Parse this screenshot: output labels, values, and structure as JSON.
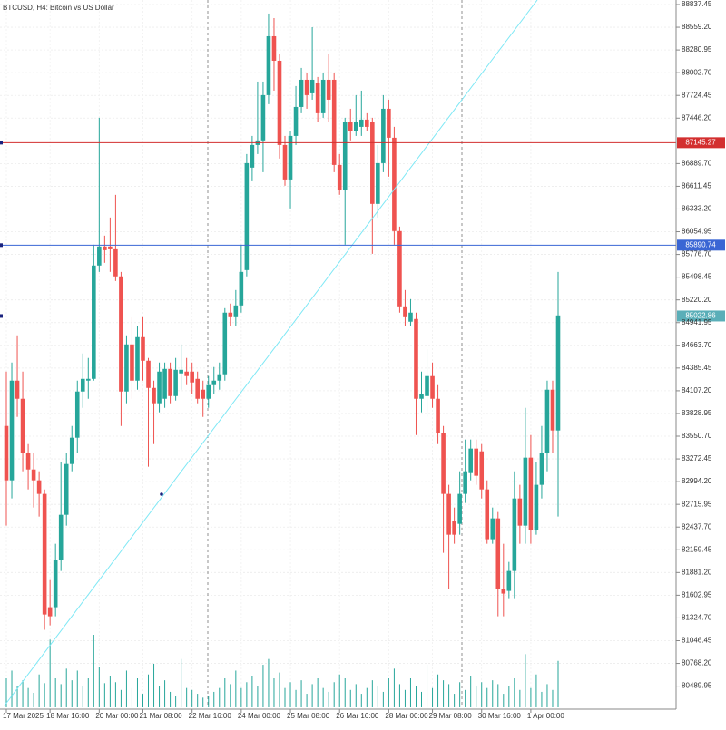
{
  "chart_data": {
    "type": "candlestick",
    "title": "BTCUSD, H4:  Bitcoin vs US Dollar",
    "up_color": "#26a69a",
    "down_color": "#ef5350",
    "volume_color": "#26a69a",
    "grid": true,
    "ylim": [
      80230,
      88893
    ],
    "yticks": [
      80489.95,
      {
        "value": 80768.2,
        "label": "80768.20"
      },
      81046.45,
      {
        "value": 81324.7,
        "label": "81324.70"
      },
      81602.95,
      {
        "value": 81881.2,
        "label": "81881.20"
      },
      82159.45,
      {
        "value": 82437.7,
        "label": "82437.70"
      },
      82715.95,
      {
        "value": 82994.2,
        "label": "82994.20"
      },
      83272.45,
      {
        "value": 83550.7,
        "label": "83550.70"
      },
      83828.95,
      {
        "value": 84107.2,
        "label": "84107.20"
      },
      84385.45,
      {
        "value": 84663.7,
        "label": "84663.70"
      },
      84941.95,
      {
        "value": 85220.2,
        "label": "85220.20"
      },
      85498.45,
      {
        "value": 85776.7,
        "label": "85776.70"
      },
      86054.95,
      {
        "value": 86333.2,
        "label": "86333.20"
      },
      86611.45,
      {
        "value": 86889.7,
        "label": "86889.70"
      },
      {
        "value": 87446.2,
        "label": "87446.20"
      },
      87724.45,
      {
        "value": 88002.7,
        "label": "88002.70"
      },
      88280.95,
      {
        "value": 88559.2,
        "label": "88559.20"
      },
      88837.45
    ],
    "levels": [
      {
        "value": 87145.27,
        "color": "#d32f2f"
      },
      {
        "value": 85890.74,
        "color": "#3a66d4"
      },
      {
        "value": 85022.86,
        "color": "#5aaeb8"
      }
    ],
    "categories": [
      "17 Mar 2025",
      null,
      null,
      null,
      null,
      null,
      null,
      null,
      "18 Mar 16:00",
      null,
      null,
      null,
      null,
      null,
      null,
      null,
      null,
      "20 Mar 00:00",
      null,
      null,
      null,
      null,
      null,
      null,
      null,
      "21 Mar 08:00",
      null,
      null,
      null,
      null,
      null,
      null,
      null,
      null,
      "22 Mar 16:00",
      null,
      null,
      null,
      null,
      null,
      null,
      null,
      null,
      "24 Mar 00:00",
      null,
      null,
      null,
      null,
      null,
      null,
      null,
      null,
      "25 Mar 08:00",
      null,
      null,
      null,
      null,
      null,
      null,
      null,
      null,
      "26 Mar 16:00",
      null,
      null,
      null,
      null,
      null,
      null,
      null,
      null,
      "28 Mar 00:00",
      null,
      null,
      null,
      null,
      null,
      null,
      null,
      "29 Mar 08:00",
      null,
      null,
      null,
      null,
      null,
      null,
      null,
      null,
      "30 Mar 16:00",
      null,
      null,
      null,
      null,
      null,
      null,
      null,
      null,
      "1 Apr 00:00",
      null,
      null,
      null,
      null,
      null
    ],
    "open": [
      83676,
      83010,
      84231,
      84009,
      83343,
      83143,
      83010,
      82844,
      81456,
      81456,
      82033,
      82588,
      83210,
      83532,
      84098,
      84231,
      84253,
      85641,
      85874,
      85874,
      85840,
      85508,
      84098,
      84675,
      84231,
      84764,
      84475,
      84142,
      83954,
      84009,
      84375,
      84042,
      84320,
      84342,
      84342,
      84253,
      84120,
      84009,
      84176,
      84231,
      84309,
      85064,
      85008,
      85152,
      85585,
      86840,
      87117,
      87173,
      87728,
      88449,
      88149,
      87117,
      86695,
      87228,
      87583,
      87916,
      87750,
      87872,
      87506,
      87916,
      87916,
      86873,
      86562,
      87395,
      87284,
      87339,
      87428,
      87395,
      86396,
      86895,
      87561,
      87206,
      86063,
      85141,
      84953,
      84986,
      84009,
      84042,
      84287,
      84009,
      83587,
      82844,
      82511,
      82477,
      82844,
      83099,
      83399,
      83365,
      82899,
      82289,
      82544,
      81678,
      81656,
      81900,
      82788,
      82455,
      83288,
      82400,
      82955,
      83343,
      84120,
      83621
    ],
    "high": [
      84342,
      84453,
      84786,
      84342,
      83454,
      83343,
      83121,
      82899,
      81789,
      82233,
      83232,
      83343,
      83676,
      84231,
      84564,
      84509,
      85896,
      87450,
      86007,
      86229,
      86507,
      85563,
      84786,
      85008,
      84897,
      85008,
      84509,
      84231,
      84453,
      84453,
      84453,
      84509,
      84675,
      84509,
      84453,
      84342,
      84231,
      84287,
      84398,
      84453,
      85119,
      85175,
      85341,
      85896,
      87006,
      87228,
      87894,
      87894,
      88727,
      88671,
      88227,
      87228,
      87284,
      87839,
      88061,
      88005,
      88560,
      87950,
      88005,
      88227,
      88005,
      87006,
      87450,
      87561,
      87728,
      87783,
      87506,
      87450,
      87117,
      87728,
      87672,
      87339,
      86118,
      85341,
      85230,
      85064,
      84342,
      84620,
      84453,
      84176,
      83676,
      82955,
      82677,
      83121,
      83510,
      83510,
      83510,
      83454,
      83010,
      82677,
      82622,
      82233,
      82011,
      83121,
      82955,
      83898,
      83565,
      83232,
      83676,
      84231,
      84231,
      85563
    ],
    "low": [
      82455,
      82788,
      83787,
      83121,
      82899,
      82677,
      82566,
      81179,
      81234,
      81345,
      81900,
      82455,
      83121,
      83343,
      83898,
      84009,
      84231,
      85563,
      85674,
      85563,
      85452,
      83676,
      83954,
      84009,
      84120,
      84231,
      83177,
      83454,
      83843,
      83898,
      83954,
      83987,
      84120,
      84176,
      84065,
      83954,
      83787,
      83898,
      84065,
      84120,
      84231,
      84897,
      84897,
      85064,
      85508,
      86673,
      87006,
      86784,
      87617,
      87783,
      86951,
      86618,
      86340,
      87117,
      87506,
      87561,
      87672,
      87395,
      87450,
      87395,
      86784,
      86507,
      85896,
      87173,
      87228,
      87228,
      87284,
      85785,
      86229,
      86784,
      86729,
      85896,
      85064,
      84897,
      84897,
      83565,
      83843,
      83787,
      83898,
      83454,
      82122,
      81678,
      82233,
      82344,
      82733,
      83010,
      82955,
      82788,
      82233,
      82233,
      81345,
      81345,
      81567,
      81567,
      82233,
      82233,
      82233,
      82344,
      82788,
      83121,
      83343,
      82566
    ],
    "close": [
      83010,
      84231,
      84009,
      83343,
      83143,
      83010,
      82844,
      81367,
      81345,
      82033,
      82588,
      83210,
      83532,
      84098,
      84253,
      84253,
      85641,
      85874,
      85829,
      85840,
      85508,
      84098,
      84675,
      84231,
      84764,
      84475,
      84142,
      83954,
      84342,
      84375,
      84042,
      84364,
      84364,
      84287,
      84209,
      84009,
      84009,
      84176,
      84231,
      84309,
      85064,
      85008,
      85152,
      85563,
      86895,
      87117,
      87173,
      87728,
      88449,
      88149,
      87117,
      86695,
      87228,
      87583,
      87916,
      87728,
      87916,
      87506,
      87916,
      87672,
      86873,
      86562,
      87395,
      87284,
      87395,
      87428,
      87339,
      86396,
      86895,
      87561,
      87206,
      86063,
      85141,
      85008,
      85064,
      84009,
      84065,
      84287,
      84009,
      83587,
      82844,
      82344,
      82344,
      82844,
      83121,
      83399,
      83066,
      82899,
      82289,
      82544,
      81678,
      81623,
      81900,
      82788,
      82455,
      83288,
      82400,
      82955,
      83343,
      84120,
      83621,
      85030
    ],
    "volume": [
      30,
      38,
      22,
      28,
      20,
      15,
      34,
      25,
      70,
      30,
      24,
      40,
      28,
      38,
      22,
      30,
      75,
      42,
      25,
      32,
      26,
      18,
      38,
      20,
      30,
      14,
      34,
      45,
      22,
      28,
      16,
      12,
      50,
      20,
      18,
      14,
      10,
      12,
      16,
      20,
      30,
      24,
      38,
      20,
      26,
      32,
      22,
      44,
      50,
      30,
      36,
      20,
      26,
      18,
      28,
      14,
      24,
      30,
      20,
      16,
      26,
      34,
      30,
      18,
      24,
      14,
      20,
      28,
      22,
      16,
      30,
      40,
      24,
      18,
      30,
      22,
      16,
      44,
      20,
      34,
      28,
      24,
      14,
      26,
      18,
      32,
      22,
      26,
      20,
      28,
      24,
      14,
      22,
      30,
      18,
      55,
      20,
      34,
      16,
      24,
      18,
      48
    ]
  }
}
